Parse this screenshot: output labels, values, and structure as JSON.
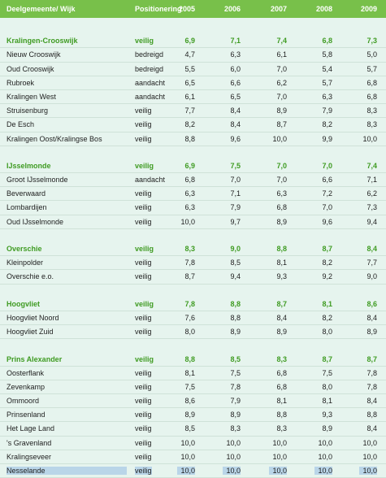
{
  "header": {
    "name": "Deelgemeente/ Wijk",
    "status": "Positionering",
    "years": [
      "2005",
      "2006",
      "2007",
      "2008",
      "2009"
    ]
  },
  "colors": {
    "header_bg": "#78c04a",
    "group_text": "#3f9b22",
    "page_bg": "#e6f4ee",
    "highlight": "#b9d5e8"
  },
  "rows": [
    {
      "type": "gap"
    },
    {
      "type": "group",
      "name": "Kralingen-Crooswijk",
      "status": "veilig",
      "values": [
        "6,9",
        "7,1",
        "7,4",
        "6,8",
        "7,3"
      ]
    },
    {
      "type": "row",
      "name": "Nieuw Crooswijk",
      "status": "bedreigd",
      "values": [
        "4,7",
        "6,3",
        "6,1",
        "5,8",
        "5,0"
      ]
    },
    {
      "type": "row",
      "name": "Oud Crooswijk",
      "status": "bedreigd",
      "values": [
        "5,5",
        "6,0",
        "7,0",
        "5,4",
        "5,7"
      ]
    },
    {
      "type": "row",
      "name": "Rubroek",
      "status": "aandacht",
      "values": [
        "6,5",
        "6,6",
        "6,2",
        "5,7",
        "6,8"
      ]
    },
    {
      "type": "row",
      "name": "Kralingen West",
      "status": "aandacht",
      "values": [
        "6,1",
        "6,5",
        "7,0",
        "6,3",
        "6,8"
      ]
    },
    {
      "type": "row",
      "name": "Struisenburg",
      "status": "veilig",
      "values": [
        "7,7",
        "8,4",
        "8,9",
        "7,9",
        "8,3"
      ]
    },
    {
      "type": "row",
      "name": "De Esch",
      "status": "veilig",
      "values": [
        "8,2",
        "8,4",
        "8,7",
        "8,2",
        "8,3"
      ]
    },
    {
      "type": "row",
      "name": "Kralingen Oost/Kralingse Bos",
      "status": "veilig",
      "values": [
        "8,8",
        "9,6",
        "10,0",
        "9,9",
        "10,0"
      ]
    },
    {
      "type": "gap"
    },
    {
      "type": "group",
      "name": "IJsselmonde",
      "status": "veilig",
      "values": [
        "6,9",
        "7,5",
        "7,0",
        "7,0",
        "7,4"
      ]
    },
    {
      "type": "row",
      "name": "Groot IJsselmonde",
      "status": "aandacht",
      "values": [
        "6,8",
        "7,0",
        "7,0",
        "6,6",
        "7,1"
      ]
    },
    {
      "type": "row",
      "name": "Beverwaard",
      "status": "veilig",
      "values": [
        "6,3",
        "7,1",
        "6,3",
        "7,2",
        "6,2"
      ]
    },
    {
      "type": "row",
      "name": "Lombardijen",
      "status": "veilig",
      "values": [
        "6,3",
        "7,9",
        "6,8",
        "7,0",
        "7,3"
      ]
    },
    {
      "type": "row",
      "name": "Oud IJsselmonde",
      "status": "veilig",
      "values": [
        "10,0",
        "9,7",
        "8,9",
        "9,6",
        "9,4"
      ]
    },
    {
      "type": "gap"
    },
    {
      "type": "group",
      "name": "Overschie",
      "status": "veilig",
      "values": [
        "8,3",
        "9,0",
        "8,8",
        "8,7",
        "8,4"
      ]
    },
    {
      "type": "row",
      "name": "Kleinpolder",
      "status": "veilig",
      "values": [
        "7,8",
        "8,5",
        "8,1",
        "8,2",
        "7,7"
      ]
    },
    {
      "type": "row",
      "name": "Overschie e.o.",
      "status": "veilig",
      "values": [
        "8,7",
        "9,4",
        "9,3",
        "9,2",
        "9,0"
      ]
    },
    {
      "type": "gap"
    },
    {
      "type": "group",
      "name": "Hoogvliet",
      "status": "veilig",
      "values": [
        "7,8",
        "8,8",
        "8,7",
        "8,1",
        "8,6"
      ]
    },
    {
      "type": "row",
      "name": "Hoogvliet Noord",
      "status": "veilig",
      "values": [
        "7,6",
        "8,8",
        "8,4",
        "8,2",
        "8,4"
      ]
    },
    {
      "type": "row",
      "name": "Hoogvliet Zuid",
      "status": "veilig",
      "values": [
        "8,0",
        "8,9",
        "8,9",
        "8,0",
        "8,9"
      ]
    },
    {
      "type": "gap"
    },
    {
      "type": "group",
      "name": "Prins Alexander",
      "status": "veilig",
      "values": [
        "8,8",
        "8,5",
        "8,3",
        "8,7",
        "8,7"
      ]
    },
    {
      "type": "row",
      "name": "Oosterflank",
      "status": "veilig",
      "values": [
        "8,1",
        "7,5",
        "6,8",
        "7,5",
        "7,8"
      ]
    },
    {
      "type": "row",
      "name": "Zevenkamp",
      "status": "veilig",
      "values": [
        "7,5",
        "7,8",
        "6,8",
        "8,0",
        "7,8"
      ]
    },
    {
      "type": "row",
      "name": "Ommoord",
      "status": "veilig",
      "values": [
        "8,6",
        "7,9",
        "8,1",
        "8,1",
        "8,4"
      ]
    },
    {
      "type": "row",
      "name": "Prinsenland",
      "status": "veilig",
      "values": [
        "8,9",
        "8,9",
        "8,8",
        "9,3",
        "8,8"
      ]
    },
    {
      "type": "row",
      "name": "Het Lage Land",
      "status": "veilig",
      "values": [
        "8,5",
        "8,3",
        "8,3",
        "8,9",
        "8,4"
      ]
    },
    {
      "type": "row",
      "name": "'s Gravenland",
      "status": "veilig",
      "values": [
        "10,0",
        "10,0",
        "10,0",
        "10,0",
        "10,0"
      ]
    },
    {
      "type": "row",
      "name": "Kralingseveer",
      "status": "veilig",
      "values": [
        "10,0",
        "10,0",
        "10,0",
        "10,0",
        "10,0"
      ]
    },
    {
      "type": "highlight",
      "name": "Nesselande",
      "status": "veilig",
      "values": [
        "10,0",
        "10,0",
        "10,0",
        "10,0",
        "10,0"
      ]
    }
  ]
}
